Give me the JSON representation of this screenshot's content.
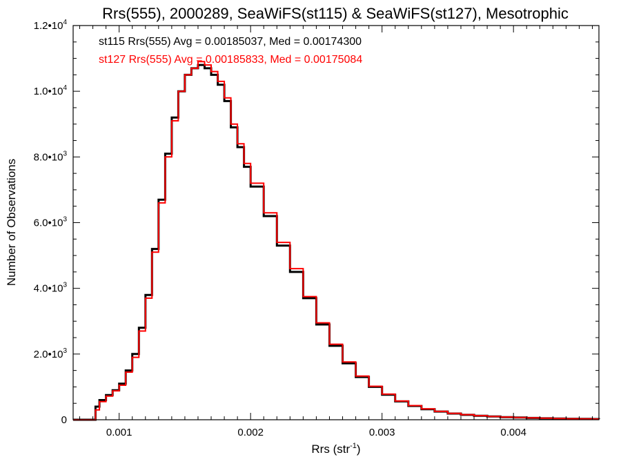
{
  "chart_data": {
    "type": "line",
    "title": "Rrs(555), 2000289, SeaWiFS(st115) & SeaWiFS(st127), Mesotrophic",
    "xlabel": "Rrs (str",
    "xlabel_sup": "-1",
    "xlabel_close": ")",
    "ylabel": "Number of Observations",
    "xlim": [
      0.00065,
      0.00465
    ],
    "ylim": [
      0,
      12000
    ],
    "x_ticks": [
      {
        "value": 0.001,
        "label": "0.001"
      },
      {
        "value": 0.002,
        "label": "0.002"
      },
      {
        "value": 0.003,
        "label": "0.003"
      },
      {
        "value": 0.004,
        "label": "0.004"
      }
    ],
    "y_ticks": [
      {
        "value": 0,
        "label": "0",
        "sup": ""
      },
      {
        "value": 2000,
        "label": "2.0•10",
        "sup": "3"
      },
      {
        "value": 4000,
        "label": "4.0•10",
        "sup": "3"
      },
      {
        "value": 6000,
        "label": "6.0•10",
        "sup": "3"
      },
      {
        "value": 8000,
        "label": "8.0•10",
        "sup": "3"
      },
      {
        "value": 10000,
        "label": "1.0•10",
        "sup": "4"
      },
      {
        "value": 12000,
        "label": "1.2•10",
        "sup": "4"
      }
    ],
    "annotations": [
      {
        "text": "st115 Rrs(555) Avg = 0.00185037, Med = 0.00174300",
        "color": "#000000"
      },
      {
        "text": "st127 Rrs(555) Avg = 0.00185833, Med = 0.00175084",
        "color": "#ff0000"
      }
    ],
    "series": [
      {
        "color": "#000000",
        "x": [
          0.00065,
          0.0008,
          0.00082,
          0.00085,
          0.0009,
          0.00095,
          0.001,
          0.00105,
          0.0011,
          0.00115,
          0.0012,
          0.00125,
          0.0013,
          0.00135,
          0.0014,
          0.00145,
          0.0015,
          0.00155,
          0.0016,
          0.00165,
          0.0017,
          0.00175,
          0.0018,
          0.00185,
          0.0019,
          0.00195,
          0.002,
          0.0021,
          0.0022,
          0.0023,
          0.0024,
          0.0025,
          0.0026,
          0.0027,
          0.0028,
          0.0029,
          0.003,
          0.0031,
          0.0032,
          0.0033,
          0.0034,
          0.0035,
          0.0036,
          0.0037,
          0.0038,
          0.0039,
          0.004,
          0.0041,
          0.0042,
          0.0043,
          0.0044,
          0.0045,
          0.0046,
          0.00465
        ],
        "y": [
          0,
          0,
          400,
          600,
          750,
          900,
          1100,
          1500,
          2000,
          2800,
          3800,
          5200,
          6700,
          8100,
          9200,
          10000,
          10500,
          10700,
          10800,
          10700,
          10500,
          10200,
          9700,
          8900,
          8300,
          7700,
          7100,
          6200,
          5300,
          4500,
          3700,
          2900,
          2250,
          1720,
          1300,
          1000,
          760,
          560,
          420,
          320,
          250,
          190,
          150,
          120,
          100,
          80,
          70,
          55,
          45,
          35,
          30,
          25,
          20,
          15
        ]
      },
      {
        "color": "#ff0000",
        "x": [
          0.00065,
          0.0008,
          0.00082,
          0.00085,
          0.0009,
          0.00095,
          0.001,
          0.00105,
          0.0011,
          0.00115,
          0.0012,
          0.00125,
          0.0013,
          0.00135,
          0.0014,
          0.00145,
          0.0015,
          0.00155,
          0.0016,
          0.00165,
          0.0017,
          0.00175,
          0.0018,
          0.00185,
          0.0019,
          0.00195,
          0.002,
          0.0021,
          0.0022,
          0.0023,
          0.0024,
          0.0025,
          0.0026,
          0.0027,
          0.0028,
          0.0029,
          0.003,
          0.0031,
          0.0032,
          0.0033,
          0.0034,
          0.0035,
          0.0036,
          0.0037,
          0.0038,
          0.0039,
          0.004,
          0.0041,
          0.0042,
          0.0043,
          0.0044,
          0.0045,
          0.0046,
          0.00465
        ],
        "y": [
          0,
          0,
          300,
          550,
          720,
          880,
          1050,
          1450,
          1900,
          2700,
          3700,
          5100,
          6600,
          8000,
          9100,
          10000,
          10500,
          10700,
          10900,
          10800,
          10600,
          10300,
          9800,
          9000,
          8400,
          7800,
          7200,
          6300,
          5400,
          4600,
          3750,
          2950,
          2300,
          1760,
          1330,
          1020,
          780,
          570,
          430,
          330,
          255,
          195,
          155,
          125,
          100,
          82,
          70,
          57,
          46,
          36,
          30,
          25,
          20,
          15
        ]
      }
    ],
    "grid": false,
    "legend": "none"
  }
}
